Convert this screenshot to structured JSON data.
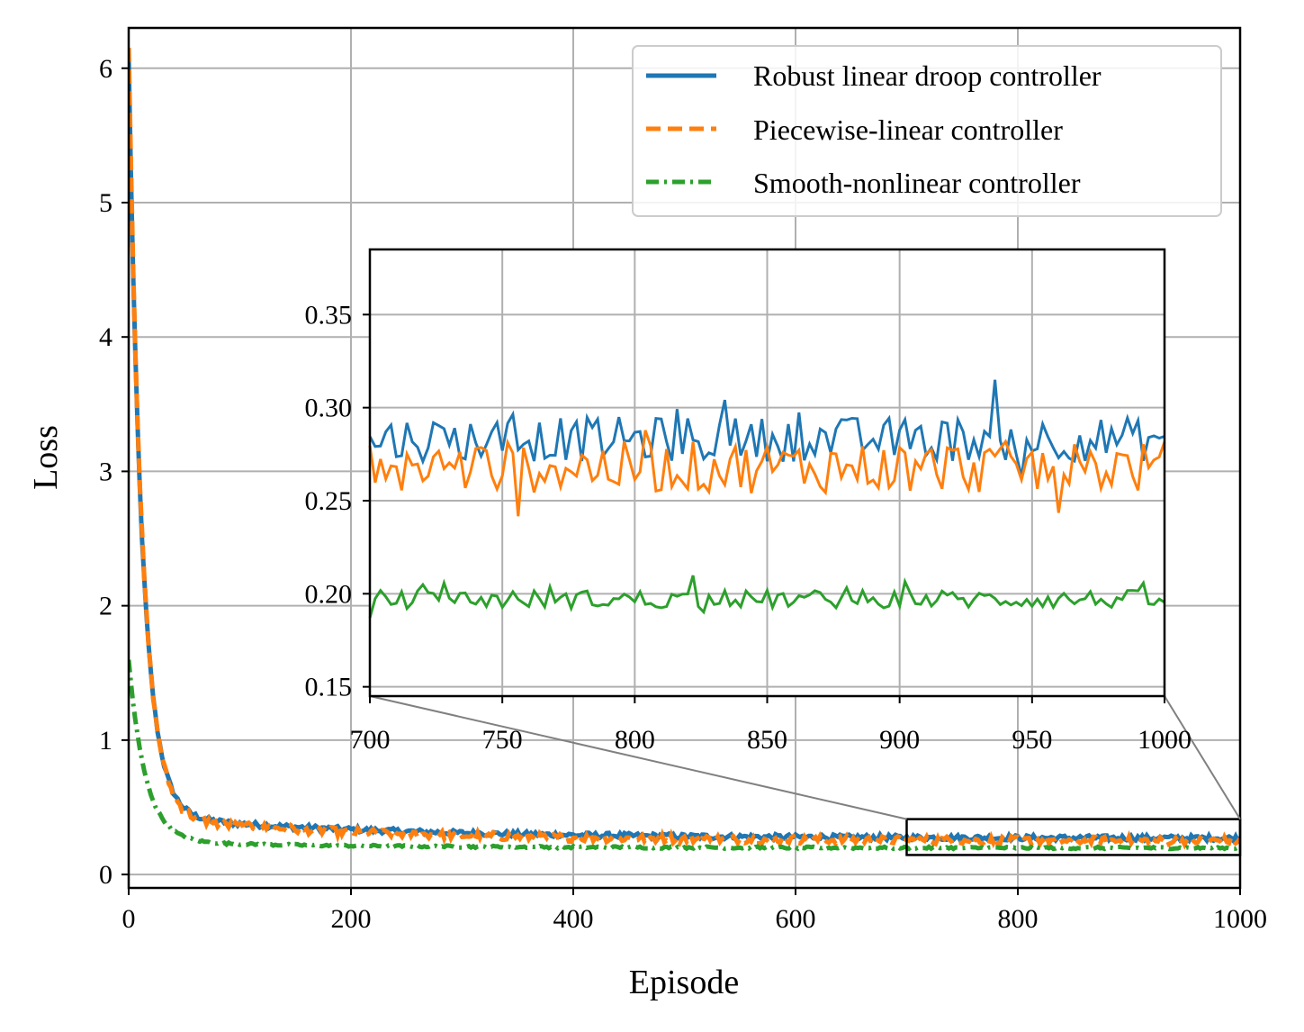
{
  "chart_data": {
    "type": "line",
    "xlabel": "Episode",
    "ylabel": "Loss",
    "xlim": [
      0,
      1000
    ],
    "ylim": [
      -0.1,
      6.3
    ],
    "xticks": [
      "0",
      "200",
      "400",
      "600",
      "800",
      "1000"
    ],
    "yticks": [
      "0",
      "1",
      "2",
      "3",
      "4",
      "5",
      "6"
    ],
    "grid": true,
    "legend_position": "top-right",
    "series": [
      {
        "name": "Robust linear droop controller",
        "color": "#1f77b4",
        "style": "solid",
        "start": 5.9,
        "floor": 0.27,
        "decay_episodes": 12,
        "noise": 0.02
      },
      {
        "name": "Piecewise-linear controller",
        "color": "#ff7f0e",
        "style": "dashed",
        "start": 6.0,
        "floor": 0.25,
        "decay_episodes": 12,
        "noise": 0.03
      },
      {
        "name": "Smooth-nonlinear controller",
        "color": "#2ca02c",
        "style": "dashdot",
        "start": 1.55,
        "floor": 0.197,
        "decay_episodes": 15,
        "noise": 0.008
      }
    ],
    "inset": {
      "xlim": [
        700,
        1000
      ],
      "ylim": [
        0.145,
        0.385
      ],
      "xticks": [
        "700",
        "750",
        "800",
        "850",
        "900",
        "950",
        "1000"
      ],
      "yticks": [
        "0.15",
        "0.20",
        "0.25",
        "0.30",
        "0.35"
      ],
      "series_levels": [
        0.283,
        0.268,
        0.197
      ],
      "series_noise": [
        0.012,
        0.014,
        0.005
      ]
    }
  }
}
